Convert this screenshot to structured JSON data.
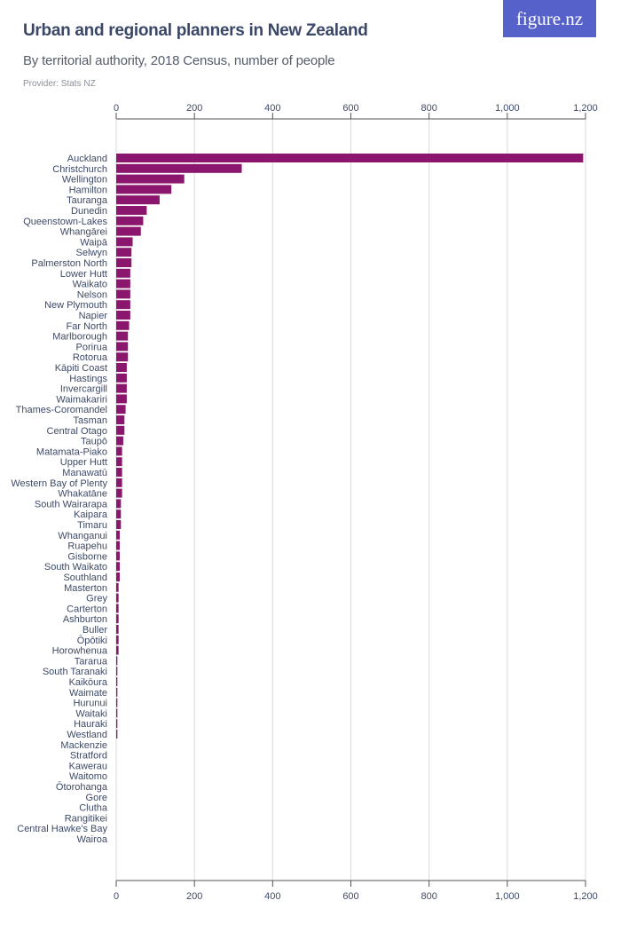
{
  "header": {
    "title": "Urban and regional planners in New Zealand",
    "subtitle": "By territorial authority, 2018 Census, number of people",
    "provider": "Provider: Stats NZ",
    "logo": "figure.nz"
  },
  "colors": {
    "bar": "#8a166d",
    "grid": "#d9d9d9",
    "axis": "#555555",
    "text": "#3d4a66",
    "logo_bg": "#5661c9"
  },
  "chart_data": {
    "type": "bar",
    "orientation": "horizontal",
    "title": "Urban and regional planners in New Zealand",
    "subtitle": "By territorial authority, 2018 Census, number of people",
    "xlim": [
      0,
      1200
    ],
    "ticks": [
      0,
      200,
      400,
      600,
      800,
      1000,
      1200
    ],
    "tick_labels": [
      "0",
      "200",
      "400",
      "600",
      "800",
      "1,000",
      "1,200"
    ],
    "grid": true,
    "categories": [
      "Auckland",
      "Christchurch",
      "Wellington",
      "Hamilton",
      "Tauranga",
      "Dunedin",
      "Queenstown-Lakes",
      "Whangārei",
      "Waipā",
      "Selwyn",
      "Palmerston North",
      "Lower Hutt",
      "Waikato",
      "Nelson",
      "New Plymouth",
      "Napier",
      "Far North",
      "Marlborough",
      "Porirua",
      "Rotorua",
      "Kāpiti Coast",
      "Hastings",
      "Invercargill",
      "Waimakariri",
      "Thames-Coromandel",
      "Tasman",
      "Central Otago",
      "Taupō",
      "Matamata-Piako",
      "Upper Hutt",
      "Manawatū",
      "Western Bay of Plenty",
      "Whakatāne",
      "South Wairarapa",
      "Kaipara",
      "Timaru",
      "Whanganui",
      "Ruapehu",
      "Gisborne",
      "South Waikato",
      "Southland",
      "Masterton",
      "Grey",
      "Carterton",
      "Ashburton",
      "Buller",
      "Ōpōtiki",
      "Horowhenua",
      "Tararua",
      "South Taranaki",
      "Kaikōura",
      "Waimate",
      "Hurunui",
      "Waitaki",
      "Hauraki",
      "Westland",
      "Mackenzie",
      "Stratford",
      "Kawerau",
      "Waitomo",
      "Ōtorohanga",
      "Gore",
      "Clutha",
      "Rangitikei",
      "Central Hawke's Bay",
      "Wairoa"
    ],
    "values": [
      1194,
      321,
      174,
      141,
      111,
      78,
      69,
      63,
      42,
      39,
      39,
      36,
      36,
      36,
      36,
      36,
      33,
      30,
      30,
      30,
      27,
      27,
      27,
      27,
      24,
      21,
      21,
      18,
      15,
      15,
      15,
      15,
      15,
      12,
      12,
      12,
      9,
      9,
      9,
      9,
      9,
      6,
      6,
      6,
      6,
      6,
      6,
      6,
      3,
      3,
      3,
      3,
      3,
      3,
      3,
      3,
      0,
      0,
      0,
      0,
      0,
      0,
      0,
      0,
      0,
      0
    ]
  }
}
